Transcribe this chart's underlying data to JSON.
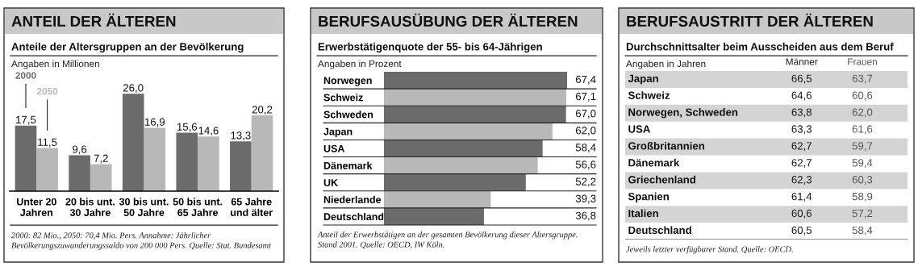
{
  "chart_data": [
    {
      "type": "bar",
      "title": "ANTEIL DER ÄLTEREN",
      "subtitle": "Anteile der Altersgruppen an der Bevölkerung",
      "ylabel": "Angaben in Millionen",
      "categories": [
        "Unter 20\nJahren",
        "20 bis unt.\n30 Jahre",
        "30 bis unt.\n50 Jahre",
        "50 bis unt.\n65 Jahre",
        "65 Jahre\nund älter"
      ],
      "series": [
        {
          "name": "2000",
          "color": "#6b6b6b",
          "values": [
            17.5,
            9.6,
            26.0,
            15.6,
            13.3
          ],
          "value_labels": [
            "17,5",
            "9,6",
            "26,0",
            "15,6",
            "13,3"
          ]
        },
        {
          "name": "2050",
          "color": "#b8b8b8",
          "values": [
            11.5,
            7.2,
            16.9,
            14.6,
            20.2
          ],
          "value_labels": [
            "11,5",
            "7,2",
            "16,9",
            "14,6",
            "20,2"
          ]
        }
      ],
      "annotations": [
        "2000: 82 Mio., 2050: 70,4 Mio. Pers. Annahme: Jährlicher Bevölkerungszuwanderungssaldo von 200 000 Pers. Quelle: Stat. Bundesamt"
      ]
    },
    {
      "type": "bar",
      "orientation": "horizontal",
      "title": "BERUFSAUSÜBUNG DER ÄLTEREN",
      "subtitle": "Erwerbstätigenquote der 55- bis 64-Jährigen",
      "ylabel": "Angaben in Prozent",
      "categories": [
        "Norwegen",
        "Schweiz",
        "Schweden",
        "Japan",
        "USA",
        "Dänemark",
        "UK",
        "Niederlande",
        "Deutschland"
      ],
      "values": [
        67.4,
        67.1,
        67.0,
        62.0,
        58.4,
        56.6,
        52.2,
        39.3,
        36.8
      ],
      "colors": [
        "#6b6b6b",
        "#b8b8b8",
        "#6b6b6b",
        "#b8b8b8",
        "#6b6b6b",
        "#b8b8b8",
        "#6b6b6b",
        "#b8b8b8",
        "#6b6b6b"
      ],
      "value_labels": [
        "67,4",
        "67,1",
        "67,0",
        "62,0",
        "58,4",
        "56,6",
        "52,2",
        "39,3",
        "36,8"
      ],
      "annotations": [
        "Anteil der Erwerbstätigen an der gesamten Bevölkerung dieser Altersgruppe. Stand 2001. Quelle: OECD, IW Köln."
      ]
    },
    {
      "type": "other",
      "title": "BERUFSAUSTRITT DER ÄLTEREN",
      "subtitle": "Durchschnittsalter beim Ausscheiden aus dem Beruf",
      "ylabel": "Angaben in Jahren",
      "categories": [
        "Japan",
        "Schweiz",
        "Norwegen, Schweden",
        "USA",
        "Großbritannien",
        "Dänemark",
        "Griechenland",
        "Spanien",
        "Italien",
        "Deutschland"
      ],
      "series": [
        {
          "name": "Männer",
          "values": [
            66.5,
            64.6,
            63.8,
            63.3,
            62.7,
            62.7,
            62.3,
            61.4,
            60.6,
            60.5
          ],
          "value_labels": [
            "66,5",
            "64,6",
            "63,8",
            "63,3",
            "62,7",
            "62,7",
            "62,3",
            "61,4",
            "60,6",
            "60,5"
          ]
        },
        {
          "name": "Frauen",
          "color": "#555555",
          "values": [
            63.7,
            60.6,
            62.0,
            61.6,
            59.7,
            59.4,
            60.3,
            58.9,
            57.2,
            58.4
          ],
          "value_labels": [
            "63,7",
            "60,6",
            "62,0",
            "61,6",
            "59,7",
            "59,4",
            "60,3",
            "58,9",
            "57,2",
            "58,4"
          ]
        }
      ],
      "annotations": [
        "Jeweils letzter verfügbarer Stand. Quelle: OECD."
      ]
    }
  ]
}
